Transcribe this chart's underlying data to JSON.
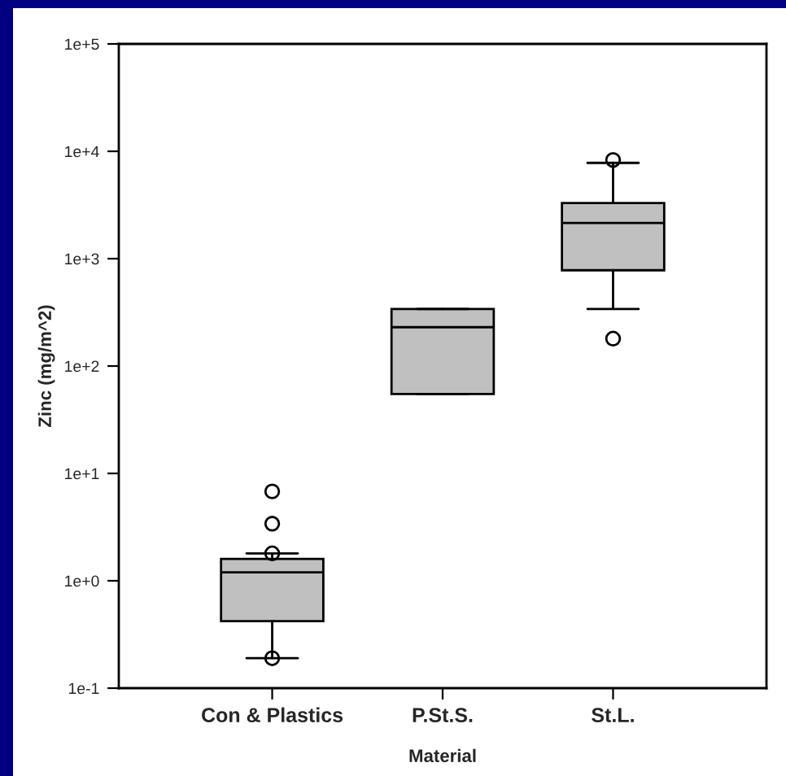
{
  "chart_data": {
    "type": "box",
    "xlabel": "Material",
    "ylabel": "Zinc (mg/m^2)",
    "categories": [
      "Con & Plastics",
      "P.St.S.",
      "St.L."
    ],
    "boxes": [
      {
        "low": 0.19,
        "q1": 0.42,
        "median": 1.2,
        "q3": 1.6,
        "high": 1.8,
        "outliers": [
          0.19,
          1.8,
          3.4,
          6.8
        ]
      },
      {
        "low": 55,
        "q1": 55,
        "median": 230,
        "q3": 340,
        "high": 340
      },
      {
        "low": 340,
        "q1": 780,
        "median": 2150,
        "q3": 3300,
        "high": 7800,
        "outliers": [
          180,
          8300
        ]
      }
    ],
    "color": "#c0c0c0",
    "log": true,
    "ylim": [
      0.1,
      100000
    ],
    "yticks": [
      {
        "value": 0.1,
        "label": "1e-1"
      },
      {
        "value": 1,
        "label": "1e+0"
      },
      {
        "value": 10,
        "label": "1e+1"
      },
      {
        "value": 100,
        "label": "1e+2"
      },
      {
        "value": 1000,
        "label": "1e+3"
      },
      {
        "value": 10000,
        "label": "1e+4"
      },
      {
        "value": 100000,
        "label": "1e+5"
      }
    ],
    "grid": false,
    "legend": false
  }
}
